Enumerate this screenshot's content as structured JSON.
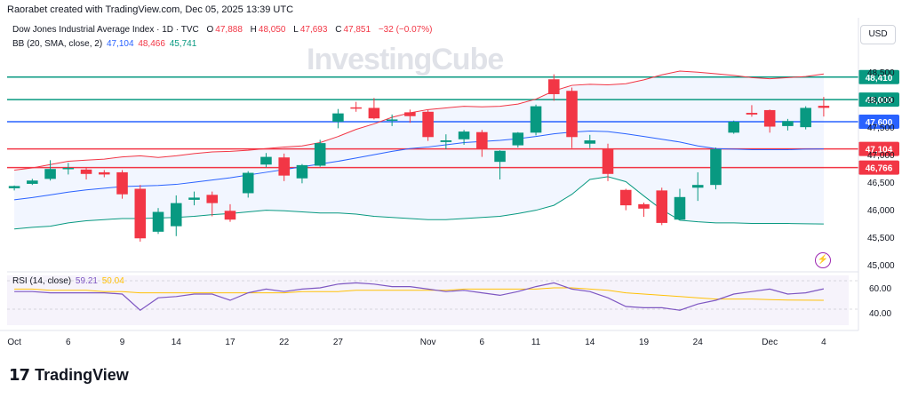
{
  "header": {
    "created": "Raorabet created with TradingView.com, Dec 05, 2025 13:39 UTC"
  },
  "legend": {
    "symbol": "Dow Jones Industrial Average Index · 1D · TVC",
    "o_label": "O",
    "o": "47,888",
    "h_label": "H",
    "h": "48,050",
    "l_label": "L",
    "l": "47,693",
    "c_label": "C",
    "c": "47,851",
    "change": "−32 (−0.07%)",
    "bb_label": "BB (20, SMA, close, 2)",
    "bb_mid": "47,104",
    "bb_upper": "48,466",
    "bb_lower": "45,741",
    "rsi_label": "RSI (14, close)",
    "rsi_val": "59.21",
    "rsi_ma": "50.04"
  },
  "currency": "USD",
  "watermark": "InvestingCube",
  "footer_brand": "TradingView",
  "colors": {
    "up": "#089981",
    "down": "#f23645",
    "bb_upper": "#f23645",
    "bb_mid": "#2962ff",
    "bb_lower": "#089981",
    "rsi": "#7e57c2",
    "rsi_ma": "#ffc107",
    "hline_green": "#089981",
    "hline_blue": "#2962ff",
    "hline_red": "#f23645"
  },
  "chart_data": {
    "type": "candlestick",
    "price_axis": {
      "ticks": [
        45000,
        45500,
        46000,
        46500,
        47000,
        47500,
        48000,
        48500
      ],
      "range": [
        45000,
        48600
      ]
    },
    "x_labels": [
      {
        "i": 0,
        "t": "Oct"
      },
      {
        "i": 3,
        "t": "6"
      },
      {
        "i": 6,
        "t": "9"
      },
      {
        "i": 9,
        "t": "14"
      },
      {
        "i": 12,
        "t": "17"
      },
      {
        "i": 15,
        "t": "22"
      },
      {
        "i": 18,
        "t": "27"
      },
      {
        "i": 23,
        "t": "Nov"
      },
      {
        "i": 26,
        "t": "6"
      },
      {
        "i": 29,
        "t": "11"
      },
      {
        "i": 32,
        "t": "14"
      },
      {
        "i": 35,
        "t": "19"
      },
      {
        "i": 38,
        "t": "24"
      },
      {
        "i": 42,
        "t": "Dec"
      },
      {
        "i": 45,
        "t": "4"
      }
    ],
    "horizontal_levels": [
      {
        "value": 48410,
        "label": "48,410",
        "color": "#089981"
      },
      {
        "value": 48000,
        "label": "48,000",
        "color": "#089981"
      },
      {
        "value": 47600,
        "label": "47,600",
        "color": "#2962ff"
      },
      {
        "value": 47104,
        "label": "47,104",
        "color": "#f23645"
      },
      {
        "value": 46766,
        "label": "46,766",
        "color": "#f23645"
      }
    ],
    "candles": [
      [
        46390,
        46430,
        46350,
        46440
      ],
      [
        46470,
        46530,
        46450,
        46560
      ],
      [
        46560,
        46740,
        46530,
        46900
      ],
      [
        46740,
        46760,
        46640,
        46850
      ],
      [
        46730,
        46650,
        46550,
        46760
      ],
      [
        46680,
        46640,
        46590,
        46720
      ],
      [
        46680,
        46280,
        46200,
        46720
      ],
      [
        46380,
        45480,
        45420,
        46450
      ],
      [
        45600,
        45960,
        45560,
        46030
      ],
      [
        45700,
        46120,
        45520,
        46260
      ],
      [
        46180,
        46220,
        46080,
        46330
      ],
      [
        46270,
        46120,
        45880,
        46330
      ],
      [
        45980,
        45820,
        45780,
        46100
      ],
      [
        46300,
        46670,
        46220,
        46700
      ],
      [
        46820,
        46960,
        46770,
        47030
      ],
      [
        46950,
        46620,
        46520,
        47020
      ],
      [
        46570,
        46810,
        46480,
        46830
      ],
      [
        46800,
        47210,
        46780,
        47270
      ],
      [
        47600,
        47750,
        47480,
        47830
      ],
      [
        47860,
        47840,
        47780,
        47960
      ],
      [
        47850,
        47660,
        47640,
        48030
      ],
      [
        47620,
        47640,
        47520,
        47730
      ],
      [
        47770,
        47700,
        47580,
        47820
      ],
      [
        47780,
        47320,
        47250,
        47810
      ],
      [
        47230,
        47260,
        47100,
        47370
      ],
      [
        47280,
        47420,
        47180,
        47450
      ],
      [
        47410,
        47100,
        46960,
        47450
      ],
      [
        46870,
        47070,
        46550,
        47080
      ],
      [
        47170,
        47400,
        47130,
        47410
      ],
      [
        47400,
        47880,
        47350,
        47910
      ],
      [
        48370,
        48100,
        47980,
        48460
      ],
      [
        48160,
        47320,
        47120,
        48220
      ],
      [
        47200,
        47260,
        47120,
        47360
      ],
      [
        47100,
        46650,
        46520,
        47200
      ],
      [
        46360,
        46080,
        45990,
        46380
      ],
      [
        46100,
        46020,
        45870,
        46130
      ],
      [
        46350,
        45760,
        45720,
        46400
      ],
      [
        45820,
        46230,
        45810,
        46380
      ],
      [
        46400,
        46450,
        46160,
        46680
      ],
      [
        46450,
        47100,
        46370,
        47130
      ],
      [
        47400,
        47600,
        47380,
        47620
      ],
      [
        47760,
        47730,
        47690,
        47900
      ],
      [
        47810,
        47510,
        47400,
        47820
      ],
      [
        47520,
        47610,
        47440,
        47650
      ],
      [
        47500,
        47850,
        47460,
        47880
      ],
      [
        47888,
        47851,
        47693,
        48050
      ]
    ],
    "bb_upper": [
      46720,
      46760,
      46820,
      46880,
      46900,
      46920,
      46960,
      46980,
      46950,
      46980,
      47020,
      47050,
      47060,
      47080,
      47110,
      47140,
      47160,
      47220,
      47330,
      47460,
      47560,
      47680,
      47760,
      47820,
      47850,
      47880,
      47870,
      47880,
      47920,
      48010,
      48160,
      48260,
      48280,
      48270,
      48290,
      48360,
      48450,
      48520,
      48500,
      48470,
      48440,
      48400,
      48380,
      48400,
      48420,
      48466
    ],
    "bb_mid": [
      46180,
      46220,
      46270,
      46320,
      46360,
      46390,
      46420,
      46430,
      46440,
      46460,
      46500,
      46540,
      46580,
      46630,
      46680,
      46730,
      46780,
      46830,
      46880,
      46940,
      47000,
      47060,
      47110,
      47140,
      47180,
      47220,
      47240,
      47260,
      47290,
      47330,
      47380,
      47410,
      47430,
      47420,
      47380,
      47330,
      47280,
      47230,
      47160,
      47110,
      47100,
      47090,
      47090,
      47090,
      47100,
      47104
    ],
    "bb_lower": [
      45650,
      45680,
      45700,
      45760,
      45800,
      45820,
      45840,
      45840,
      45850,
      45860,
      45880,
      45910,
      45930,
      45960,
      45990,
      45980,
      45960,
      45940,
      45940,
      45920,
      45880,
      45860,
      45840,
      45820,
      45820,
      45840,
      45860,
      45880,
      45930,
      45990,
      46080,
      46280,
      46550,
      46600,
      46510,
      46250,
      46000,
      45810,
      45780,
      45760,
      45760,
      45750,
      45750,
      45750,
      45745,
      45741
    ],
    "rsi": {
      "ticks": [
        40,
        60
      ],
      "values": [
        57,
        57,
        56,
        56,
        56,
        56,
        55,
        42,
        52,
        53,
        55,
        55,
        50,
        56,
        59,
        57,
        59,
        60,
        63,
        64,
        63,
        61,
        61,
        59,
        57,
        58,
        56,
        54,
        57,
        61,
        64,
        59,
        57,
        52,
        45,
        44,
        44,
        42,
        47,
        50,
        55,
        57,
        59,
        55,
        56,
        59.21
      ],
      "ma": [
        59,
        59,
        58,
        58,
        58,
        57,
        57,
        56,
        56,
        56,
        56,
        56,
        56,
        56,
        56,
        56,
        57,
        57,
        57,
        58,
        58,
        58,
        58,
        58,
        58,
        59,
        59,
        59,
        59,
        59,
        60,
        60,
        59,
        58,
        56,
        55,
        54,
        53,
        52,
        51,
        51,
        51,
        50.5,
        50.2,
        50.1,
        50.04
      ]
    }
  }
}
